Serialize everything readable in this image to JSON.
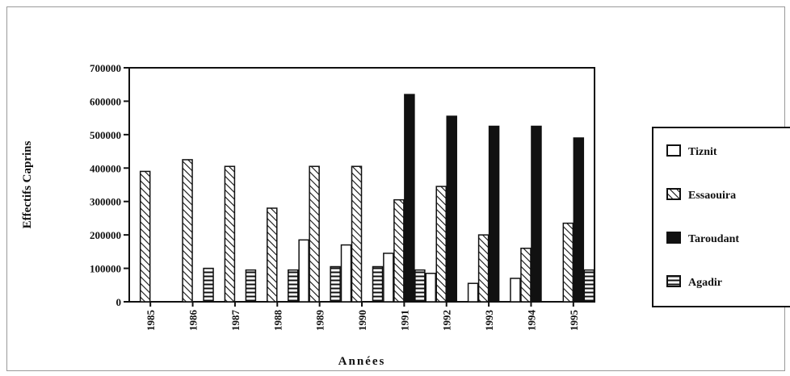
{
  "chart_data": {
    "type": "bar",
    "xlabel": "Années",
    "ylabel": "Effectifs Caprins",
    "ylim": [
      0,
      700000
    ],
    "yticks": [
      "0",
      "100000",
      "200000",
      "300000",
      "400000",
      "500000",
      "600000",
      "700000"
    ],
    "categories": [
      "1985",
      "1986",
      "1987",
      "1988",
      "1989",
      "1990",
      "1991",
      "1992",
      "1993",
      "1994",
      "1995"
    ],
    "series": [
      {
        "name": "Tiznit",
        "fill": "open",
        "color": "#ffffff",
        "values": [
          0,
          0,
          0,
          0,
          185000,
          170000,
          145000,
          85000,
          55000,
          70000,
          0
        ]
      },
      {
        "name": "Essaouira",
        "fill": "hatch",
        "color": "#ffffff",
        "values": [
          390000,
          425000,
          405000,
          280000,
          405000,
          405000,
          305000,
          345000,
          200000,
          160000,
          235000
        ]
      },
      {
        "name": "Taroudant",
        "fill": "solid",
        "color": "#111111",
        "values": [
          0,
          0,
          0,
          0,
          0,
          0,
          620000,
          555000,
          525000,
          525000,
          490000
        ]
      },
      {
        "name": "Agadir",
        "fill": "horizontal",
        "color": "#ffffff",
        "values": [
          0,
          100000,
          95000,
          95000,
          105000,
          105000,
          95000,
          0,
          0,
          0,
          95000
        ]
      }
    ],
    "legend_position": "right",
    "grid": false
  }
}
